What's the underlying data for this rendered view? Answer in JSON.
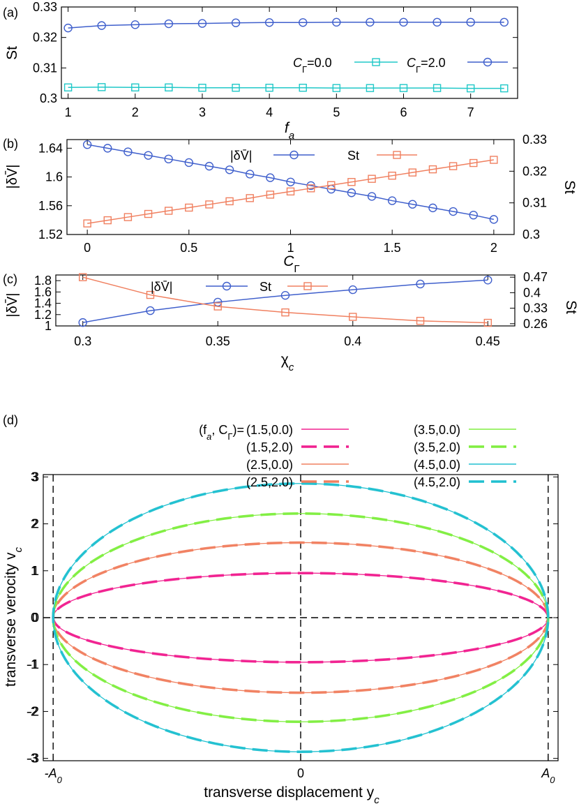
{
  "colors": {
    "blue": "#3f5fcc",
    "cyan": "#20c8c8",
    "orange": "#f08060",
    "magenta": "#f0208f",
    "green": "#80ee40",
    "ocyan": "#20c0d0"
  },
  "chart_data": [
    {
      "panel_label": "(a)",
      "type": "line",
      "xlabel": "f_a",
      "xlabel_main": "f",
      "xlabel_sub": "a",
      "ylabel": "St",
      "xlim": [
        0.9,
        7.7
      ],
      "ylim": [
        0.3,
        0.33
      ],
      "xticks": [
        1,
        2,
        3,
        4,
        5,
        6,
        7
      ],
      "yticks": [
        0.3,
        0.31,
        0.32,
        0.33
      ],
      "ytick_labels": [
        "0.3",
        "0.31",
        "0.32",
        "0.33"
      ],
      "legend_placement": "right",
      "series": [
        {
          "name": "C_Γ=0.0",
          "legend_main": "C",
          "legend_sub": "Γ",
          "legend_rest": "=0.0",
          "marker": "square",
          "color": "#20c8c8",
          "x": [
            1,
            1.5,
            2,
            2.5,
            3,
            3.5,
            4,
            4.5,
            5,
            5.5,
            6,
            6.5,
            7,
            7.5
          ],
          "y": [
            0.3036,
            0.3037,
            0.3036,
            0.3036,
            0.3035,
            0.3035,
            0.3035,
            0.3035,
            0.3034,
            0.3034,
            0.3034,
            0.3034,
            0.3033,
            0.3033
          ]
        },
        {
          "name": "C_Γ=2.0",
          "legend_main": "C",
          "legend_sub": "Γ",
          "legend_rest": "=2.0",
          "marker": "circle",
          "color": "#3f5fcc",
          "x": [
            1,
            1.5,
            2,
            2.5,
            3,
            3.5,
            4,
            4.5,
            5,
            5.5,
            6,
            6.5,
            7,
            7.5
          ],
          "y": [
            0.3231,
            0.3239,
            0.3242,
            0.3245,
            0.3246,
            0.3248,
            0.3249,
            0.3249,
            0.325,
            0.325,
            0.325,
            0.325,
            0.325,
            0.325
          ]
        }
      ]
    },
    {
      "panel_label": "(b)",
      "type": "line",
      "xlabel": "C_Γ",
      "xlabel_main": "C",
      "xlabel_sub": "Γ",
      "ylabel_left": "|δV̄|",
      "ylabel_right": "St",
      "xlim": [
        -0.1,
        2.1
      ],
      "ylim_left": [
        1.52,
        1.652
      ],
      "ylim_right": [
        0.3,
        0.33
      ],
      "xticks": [
        0,
        0.5,
        1,
        1.5,
        2
      ],
      "yticks_left": [
        1.52,
        1.56,
        1.6,
        1.64
      ],
      "ytick_labels_left": [
        "1.52",
        "1.56",
        "1.6",
        "1.64"
      ],
      "yticks_right": [
        0.3,
        0.31,
        0.32,
        0.33
      ],
      "ytick_labels_right": [
        "0.3",
        "0.31",
        "0.32",
        "0.33"
      ],
      "legend_placement": "top-center",
      "series": [
        {
          "name": "|δV̄|",
          "axis": "left",
          "marker": "circle",
          "color": "#3f5fcc",
          "x": [
            0,
            0.1,
            0.2,
            0.3,
            0.4,
            0.5,
            0.6,
            0.7,
            0.8,
            0.9,
            1.0,
            1.1,
            1.2,
            1.3,
            1.4,
            1.5,
            1.6,
            1.7,
            1.8,
            1.9,
            2.0
          ],
          "y": [
            1.645,
            1.64,
            1.635,
            1.63,
            1.625,
            1.62,
            1.615,
            1.61,
            1.604,
            1.599,
            1.593,
            1.588,
            1.583,
            1.578,
            1.573,
            1.567,
            1.562,
            1.557,
            1.552,
            1.547,
            1.541
          ]
        },
        {
          "name": "St",
          "axis": "right",
          "marker": "square",
          "color": "#f08060",
          "x": [
            0,
            0.1,
            0.2,
            0.3,
            0.4,
            0.5,
            0.6,
            0.7,
            0.8,
            0.9,
            1.0,
            1.1,
            1.2,
            1.3,
            1.4,
            1.5,
            1.6,
            1.7,
            1.8,
            1.9,
            2.0
          ],
          "y": [
            0.3035,
            0.3045,
            0.3055,
            0.3065,
            0.3075,
            0.3085,
            0.3095,
            0.3105,
            0.3115,
            0.3126,
            0.3136,
            0.3146,
            0.3156,
            0.3166,
            0.3176,
            0.3186,
            0.3196,
            0.3206,
            0.3216,
            0.3226,
            0.3236
          ]
        }
      ]
    },
    {
      "panel_label": "(c)",
      "type": "line",
      "xlabel": "χ_c",
      "xlabel_main": "χ",
      "xlabel_sub": "c",
      "ylabel_left": "|δV̄|",
      "ylabel_right": "St",
      "xlim": [
        0.29,
        0.46
      ],
      "ylim_left": [
        1.0,
        1.9
      ],
      "ylim_right": [
        0.25,
        0.48
      ],
      "xticks": [
        0.3,
        0.35,
        0.4,
        0.45
      ],
      "yticks_left": [
        1.0,
        1.2,
        1.4,
        1.6,
        1.8
      ],
      "ytick_labels_left": [
        "1",
        "1.2",
        "1.4",
        "1.6",
        "1.8"
      ],
      "yticks_right": [
        0.26,
        0.33,
        0.4,
        0.47
      ],
      "ytick_labels_right": [
        "0.26",
        "0.33",
        "0.4",
        "0.47"
      ],
      "legend_placement": "top-center",
      "series": [
        {
          "name": "|δV̄|",
          "axis": "left",
          "marker": "circle",
          "color": "#3f5fcc",
          "x": [
            0.3,
            0.325,
            0.35,
            0.375,
            0.4,
            0.425,
            0.45
          ],
          "y": [
            1.06,
            1.27,
            1.42,
            1.54,
            1.64,
            1.74,
            1.81
          ]
        },
        {
          "name": "St",
          "axis": "right",
          "marker": "square",
          "color": "#f08060",
          "x": [
            0.3,
            0.325,
            0.35,
            0.375,
            0.4,
            0.425,
            0.45
          ],
          "y": [
            0.47,
            0.39,
            0.338,
            0.311,
            0.291,
            0.273,
            0.264
          ]
        }
      ]
    },
    {
      "panel_label": "(d)",
      "type": "line",
      "xlabel": "transverse displacement y_c",
      "xlabel_main": "transverse displacement y",
      "xlabel_sub": "c",
      "ylabel": "transverse verocity v_c",
      "ylabel_main": "transverse verocity v",
      "ylabel_sub": "c",
      "xlim": [
        -1.04,
        1.04
      ],
      "ylim": [
        -3.05,
        3.05
      ],
      "xticks": [
        -1,
        0,
        1
      ],
      "xtick_labels": [
        "-A",
        "0",
        "A"
      ],
      "xtick_subs": [
        "0",
        "",
        "0"
      ],
      "yticks": [
        -3,
        -2,
        -1,
        0,
        1,
        2,
        3
      ],
      "ytick_labels": [
        "-3",
        "-2",
        "-1",
        "0",
        "1",
        "2",
        "3"
      ],
      "legend_placement": "top",
      "legend_header_main": "(f",
      "legend_header_sub": "a",
      "legend_header_mid": ", C",
      "legend_header_sub2": "Γ",
      "legend_header_rest": ")=",
      "series": [
        {
          "name": "(1.5,0.0)",
          "color": "#f0208f",
          "style": "thin",
          "vmax": 0.95
        },
        {
          "name": "(1.5,2.0)",
          "color": "#f0208f",
          "style": "thick-dash",
          "vmax": 0.95
        },
        {
          "name": "(2.5,0.0)",
          "color": "#f08060",
          "style": "thin",
          "vmax": 1.6
        },
        {
          "name": "(2.5,2.0)",
          "color": "#f08060",
          "style": "thick-dash",
          "vmax": 1.6
        },
        {
          "name": "(3.5,0.0)",
          "color": "#80ee40",
          "style": "thin",
          "vmax": 2.22
        },
        {
          "name": "(3.5,2.0)",
          "color": "#80ee40",
          "style": "thick-dash",
          "vmax": 2.22
        },
        {
          "name": "(4.5,0.0)",
          "color": "#20c0d0",
          "style": "thin",
          "vmax": 2.86
        },
        {
          "name": "(4.5,2.0)",
          "color": "#20c0d0",
          "style": "thick-dash",
          "vmax": 2.86
        }
      ]
    }
  ]
}
